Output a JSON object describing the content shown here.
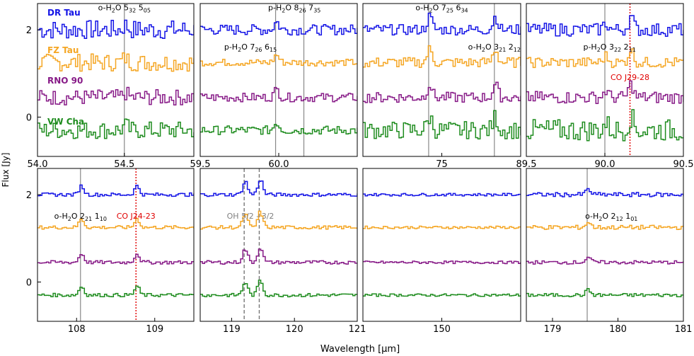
{
  "figure": {
    "xlabel": "Wavelength [μm]",
    "ylabel": "Flux [Jy]"
  },
  "chart_data": {
    "type": "line",
    "step": true,
    "grid": false,
    "ylabel": "Flux [Jy]",
    "xlabel": "Wavelength [μm]",
    "yticks": [
      0,
      2
    ],
    "ylim": [
      -0.9,
      2.6
    ],
    "series": [
      {
        "name": "DR Tau",
        "color": "#1414e6",
        "offset": 2.0
      },
      {
        "name": "FZ Tau",
        "color": "#f5a623",
        "offset": 1.25
      },
      {
        "name": "RNO 90",
        "color": "#871a87",
        "offset": 0.45
      },
      {
        "name": "VW Cha",
        "color": "#1e8c1e",
        "offset": -0.3
      }
    ],
    "panels": [
      {
        "id": "p1",
        "xlim": [
          54.0,
          54.9
        ],
        "xtick_labels": [
          [
            "54.0",
            "54.0"
          ],
          [
            "54.5",
            "54.5"
          ]
        ],
        "lines": [
          {
            "x": 54.5,
            "style": "solid",
            "color": "#888888"
          }
        ],
        "labels": [
          {
            "x": 54.5,
            "y": 2.45,
            "html": [
              "o-H",
              "2",
              "O 5",
              "32",
              " 5",
              "05"
            ],
            "color": "#000000"
          }
        ],
        "legend": true,
        "amp": [
          0.22,
          0.2,
          0.18,
          0.2
        ],
        "features": [
          {
            "x": 54.5,
            "h": 0.1
          }
        ]
      },
      {
        "id": "p2",
        "xlim": [
          59.5,
          60.5
        ],
        "xtick_labels": [
          [
            "59.5",
            "59.5"
          ],
          [
            "60.0",
            "60.0"
          ]
        ],
        "lines": [
          {
            "x": 59.98,
            "style": "solid",
            "color": "#888888"
          },
          {
            "x": 60.16,
            "style": "solid",
            "color": "#888888"
          }
        ],
        "labels": [
          {
            "x": 60.1,
            "y": 2.45,
            "parts": [
              "p-H",
              "2",
              "O 8",
              "26",
              " 7",
              "35"
            ],
            "color": "#000000"
          },
          {
            "x": 59.82,
            "y": 1.55,
            "parts": [
              "p-H",
              "2",
              "O 7",
              "26",
              " 6",
              "15"
            ],
            "color": "#000000"
          }
        ],
        "amp": [
          0.12,
          0.08,
          0.1,
          0.1
        ],
        "features": [
          {
            "x": 59.98,
            "h": 0.18
          }
        ]
      },
      {
        "id": "p3",
        "xlim": [
          74.7,
          75.3
        ],
        "xtick_labels": [
          [
            "75",
            "75"
          ]
        ],
        "lines": [
          {
            "x": 74.95,
            "style": "solid",
            "color": "#888888"
          },
          {
            "x": 75.2,
            "style": "solid",
            "color": "#888888"
          }
        ],
        "labels": [
          {
            "x": 75.0,
            "y": 2.45,
            "parts": [
              "o-H",
              "2",
              "O 7",
              "25",
              " 6",
              "34"
            ],
            "color": "#000000"
          },
          {
            "x": 75.2,
            "y": 1.55,
            "parts": [
              "o-H",
              "2",
              "O 3",
              "21",
              " 2",
              "12"
            ],
            "color": "#000000"
          }
        ],
        "amp": [
          0.12,
          0.12,
          0.12,
          0.2
        ],
        "features": [
          {
            "x": 74.95,
            "h": 0.3
          },
          {
            "x": 75.2,
            "h": 0.3
          }
        ]
      },
      {
        "id": "p4",
        "xlim": [
          89.5,
          90.5
        ],
        "xtick_labels": [
          [
            "89.5",
            "89.5"
          ],
          [
            "90.0",
            "90.0"
          ],
          [
            "90.5",
            "90.5"
          ]
        ],
        "lines": [
          {
            "x": 90.0,
            "style": "solid",
            "color": "#888888"
          },
          {
            "x": 90.16,
            "style": "dotted",
            "color": "#e00000"
          }
        ],
        "labels": [
          {
            "x": 90.03,
            "y": 1.55,
            "parts": [
              "p-H",
              "2",
              "O 3",
              "22",
              " 2",
              "11"
            ],
            "color": "#000000"
          },
          {
            "x": 90.16,
            "y": 0.85,
            "parts": [
              "CO J29-28"
            ],
            "color": "#e00000"
          }
        ],
        "amp": [
          0.15,
          0.12,
          0.14,
          0.25
        ],
        "features": [
          {
            "x": 90.16,
            "h": 0.3
          },
          {
            "x": 90.0,
            "h": 0.15
          }
        ]
      },
      {
        "id": "p5",
        "xlim": [
          107.5,
          109.5
        ],
        "xtick_labels": [
          [
            "108",
            "108"
          ],
          [
            "109",
            "109"
          ]
        ],
        "lines": [
          {
            "x": 108.05,
            "style": "solid",
            "color": "#888888"
          },
          {
            "x": 108.76,
            "style": "dotted",
            "color": "#e00000"
          }
        ],
        "labels": [
          {
            "x": 108.05,
            "y": 1.45,
            "parts": [
              "o-H",
              "2",
              "O 2",
              "21",
              " 1",
              "10"
            ],
            "color": "#000000"
          },
          {
            "x": 108.76,
            "y": 1.45,
            "parts": [
              "CO J24-23"
            ],
            "color": "#e00000"
          }
        ],
        "amp": [
          0.04,
          0.04,
          0.04,
          0.04
        ],
        "features": [
          {
            "x": 108.05,
            "h": 0.2
          },
          {
            "x": 108.76,
            "h": 0.2
          }
        ]
      },
      {
        "id": "p6",
        "xlim": [
          118.5,
          121.0
        ],
        "xtick_labels": [
          [
            "119",
            "119"
          ],
          [
            "120",
            "120"
          ],
          [
            "121",
            "121"
          ]
        ],
        "lines": [
          {
            "x": 119.2,
            "style": "dashed",
            "color": "#777777"
          },
          {
            "x": 119.44,
            "style": "dashed",
            "color": "#777777"
          }
        ],
        "labels": [
          {
            "x": 119.3,
            "y": 1.45,
            "parts": [
              "OH 5/2 - 3/2"
            ],
            "color": "#808080"
          }
        ],
        "amp": [
          0.04,
          0.04,
          0.04,
          0.04
        ],
        "features": [
          {
            "x": 119.2,
            "h": 0.3
          },
          {
            "x": 119.44,
            "h": 0.35
          }
        ]
      },
      {
        "id": "p7",
        "xlim": [
          143.0,
          157.0
        ],
        "xtick_labels": [
          [
            "150",
            "150"
          ]
        ],
        "lines": [],
        "labels": [],
        "amp": [
          0.03,
          0.03,
          0.03,
          0.03
        ],
        "features": []
      },
      {
        "id": "p8",
        "xlim": [
          178.6,
          181.0
        ],
        "xtick_labels": [
          [
            "179",
            "179"
          ],
          [
            "180",
            "180"
          ],
          [
            "181",
            "181"
          ]
        ],
        "lines": [
          {
            "x": 179.53,
            "style": "solid",
            "color": "#888888"
          }
        ],
        "labels": [
          {
            "x": 179.9,
            "y": 1.45,
            "parts": [
              "o-H",
              "2",
              "O 2",
              "12",
              " 1",
              "01"
            ],
            "color": "#000000"
          }
        ],
        "amp": [
          0.05,
          0.05,
          0.04,
          0.04
        ],
        "features": [
          {
            "x": 179.53,
            "h": 0.12
          }
        ]
      }
    ]
  }
}
